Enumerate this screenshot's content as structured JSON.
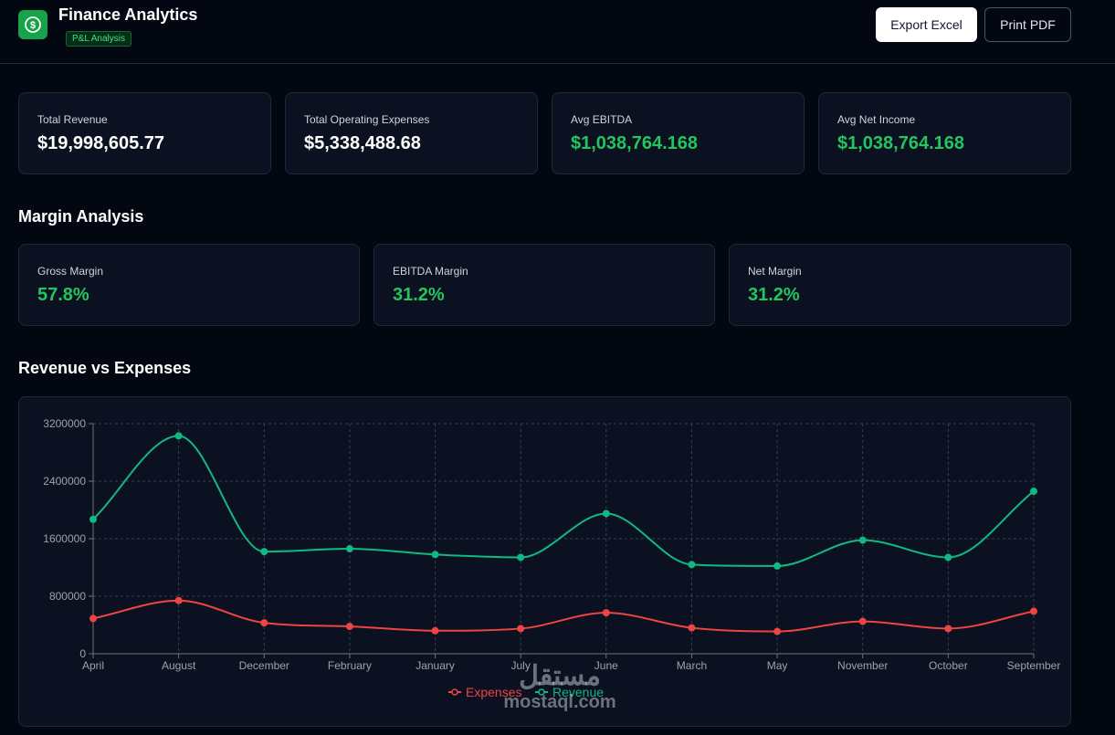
{
  "header": {
    "title": "Finance Analytics",
    "badge": "P&L Analysis",
    "logo_icon": "dollar-circle-icon",
    "export_excel_label": "Export Excel",
    "print_pdf_label": "Print PDF"
  },
  "kpis": [
    {
      "label": "Total Revenue",
      "value": "$19,998,605.77",
      "accent": "white"
    },
    {
      "label": "Total Operating Expenses",
      "value": "$5,338,488.68",
      "accent": "white"
    },
    {
      "label": "Avg EBITDA",
      "value": "$1,038,764.168",
      "accent": "green"
    },
    {
      "label": "Avg Net Income",
      "value": "$1,038,764.168",
      "accent": "green"
    }
  ],
  "margin_section": {
    "title": "Margin Analysis",
    "items": [
      {
        "label": "Gross Margin",
        "value": "57.8%"
      },
      {
        "label": "EBITDA Margin",
        "value": "31.2%"
      },
      {
        "label": "Net Margin",
        "value": "31.2%"
      }
    ]
  },
  "chart_section": {
    "title": "Revenue vs Expenses"
  },
  "watermark": {
    "arabic": "مستقل",
    "latin": "mostaql.com"
  },
  "colors": {
    "background": "#030712",
    "card": "#0b1120",
    "positive": "#22c55e",
    "revenue_line": "#10b981",
    "expenses_line": "#ef4444"
  },
  "chart_data": {
    "type": "line",
    "categories": [
      "April",
      "August",
      "December",
      "February",
      "January",
      "July",
      "June",
      "March",
      "May",
      "November",
      "October",
      "September"
    ],
    "series": [
      {
        "name": "Expenses",
        "color": "#ef4444",
        "values": [
          490000,
          740000,
          430000,
          380000,
          320000,
          350000,
          570000,
          360000,
          310000,
          450000,
          350000,
          590000
        ]
      },
      {
        "name": "Revenue",
        "color": "#10b981",
        "values": [
          1870000,
          3030000,
          1420000,
          1460000,
          1380000,
          1340000,
          1950000,
          1240000,
          1220000,
          1580000,
          1340000,
          2260000
        ]
      }
    ],
    "yticks": [
      0,
      800000,
      1600000,
      2400000,
      3200000
    ],
    "ylim": [
      0,
      3200000
    ],
    "grid": true,
    "legend": "bottom-center"
  }
}
